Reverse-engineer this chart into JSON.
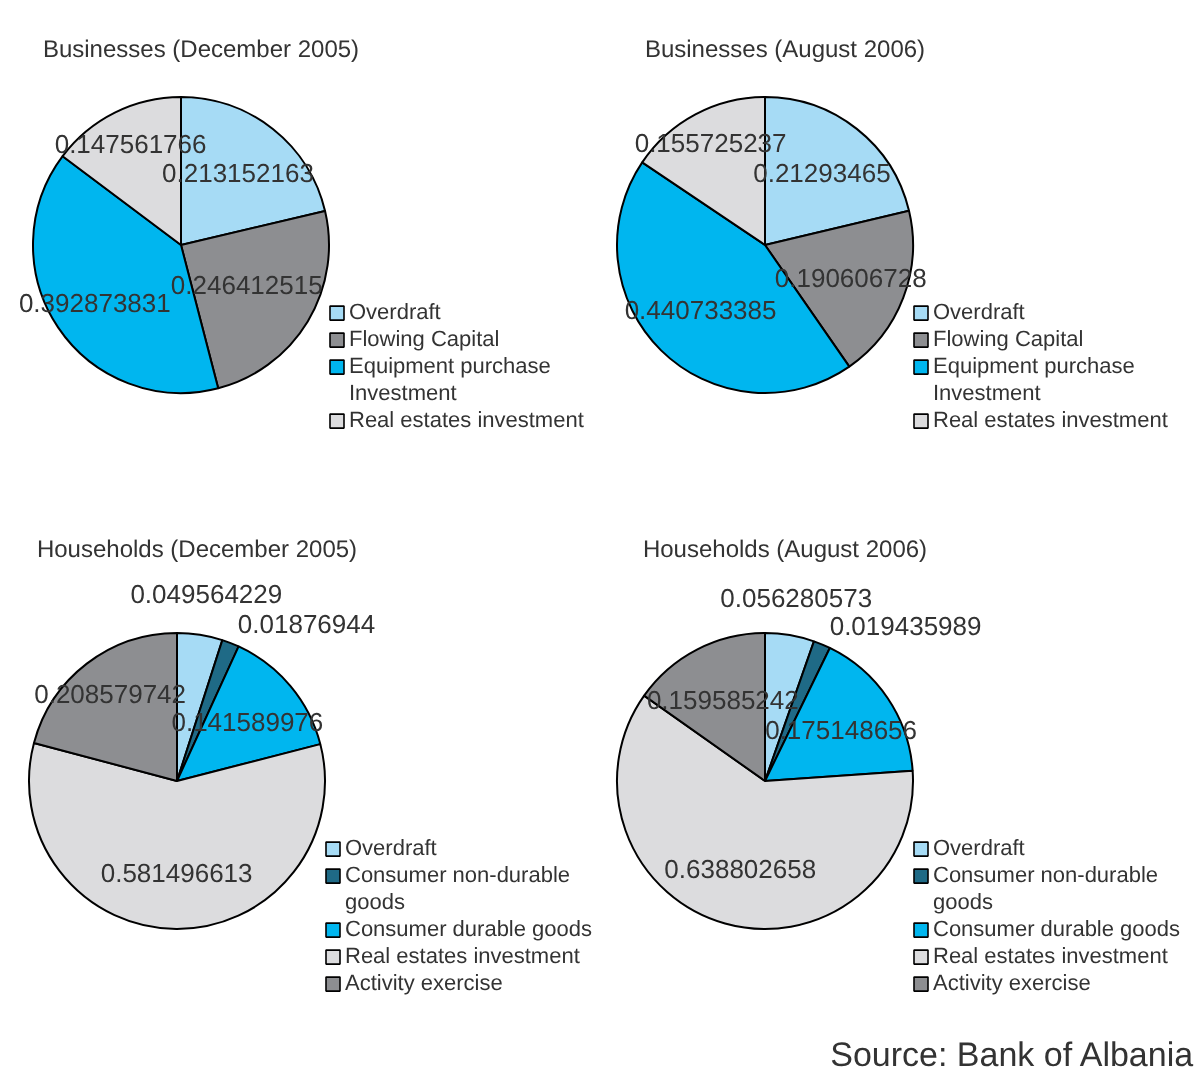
{
  "chart_data": [
    {
      "type": "pie",
      "title": "Businesses (December 2005)",
      "categories": [
        "Overdraft",
        "Flowing Capital",
        "Equipment purchase Investment",
        "Real estates investment"
      ],
      "values": [
        0.213152163,
        0.246412515,
        0.392873831,
        0.147561766
      ],
      "colors": [
        "#a6dbf5",
        "#8d8e91",
        "#00b6ef",
        "#dcdcde"
      ],
      "data_labels": true,
      "legend": "bottom right"
    },
    {
      "type": "pie",
      "title": "Businesses (August 2006)",
      "categories": [
        "Overdraft",
        "Flowing Capital",
        "Equipment purchase Investment",
        "Real estates investment"
      ],
      "values": [
        0.21293465,
        0.190606728,
        0.440733385,
        0.155725237
      ],
      "colors": [
        "#a6dbf5",
        "#8d8e91",
        "#00b6ef",
        "#dcdcde"
      ],
      "data_labels": true,
      "legend": "bottom right"
    },
    {
      "type": "pie",
      "title": "Households (December 2005)",
      "categories": [
        "Overdraft",
        "Consumer non-durable goods",
        "Consumer durable goods",
        "Real estates investment",
        "Activity exercise"
      ],
      "values": [
        0.049564229,
        0.01876944,
        0.141589976,
        0.581496613,
        0.208579742
      ],
      "colors": [
        "#a6dbf5",
        "#1f6a86",
        "#00b6ef",
        "#dcdcde",
        "#8d8e91"
      ],
      "data_labels": true,
      "legend": "bottom right"
    },
    {
      "type": "pie",
      "title": "Households (August 2006)",
      "categories": [
        "Overdraft",
        "Consumer non-durable goods",
        "Consumer durable goods",
        "Real estates investment",
        "Activity exercise"
      ],
      "values": [
        0.056280573,
        0.019435989,
        0.175148656,
        0.638802658,
        0.159585242
      ],
      "colors": [
        "#a6dbf5",
        "#1f6a86",
        "#00b6ef",
        "#dcdcde",
        "#8d8e91"
      ],
      "data_labels": true,
      "legend": "bottom right",
      "annotations": [
        "Source: Bank of Albania"
      ]
    }
  ]
}
